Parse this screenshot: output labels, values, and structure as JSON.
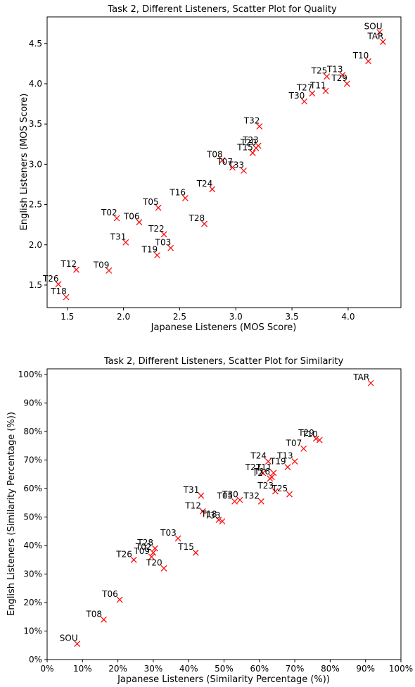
{
  "chart_data": [
    {
      "type": "scatter",
      "title": "Task 2, Different Listeners, Scatter Plot for Quality",
      "xlabel": "Japanese Listeners (MOS Score)",
      "ylabel": "English Listeners (MOS Score)",
      "xlim": [
        1.32,
        4.47
      ],
      "ylim": [
        1.22,
        4.83
      ],
      "xticks": [
        1.5,
        2.0,
        2.5,
        3.0,
        3.5,
        4.0
      ],
      "xtick_labels": [
        "1.5",
        "2.0",
        "2.5",
        "3.0",
        "3.5",
        "4.0"
      ],
      "yticks": [
        1.5,
        2.0,
        2.5,
        3.0,
        3.5,
        4.0,
        4.5
      ],
      "ytick_labels": [
        "1.5",
        "2.0",
        "2.5",
        "3.0",
        "3.5",
        "4.0",
        "4.5"
      ],
      "marker": "x",
      "marker_color": "#ff0000",
      "points": [
        {
          "label": "SOU",
          "x": 4.28,
          "y": 4.64
        },
        {
          "label": "TAR",
          "x": 4.31,
          "y": 4.52
        },
        {
          "label": "T10",
          "x": 4.18,
          "y": 4.28
        },
        {
          "label": "T13",
          "x": 3.95,
          "y": 4.11
        },
        {
          "label": "T25",
          "x": 3.81,
          "y": 4.09
        },
        {
          "label": "T29",
          "x": 3.99,
          "y": 4.0
        },
        {
          "label": "T27",
          "x": 3.68,
          "y": 3.88
        },
        {
          "label": "T11",
          "x": 3.8,
          "y": 3.91
        },
        {
          "label": "T30",
          "x": 3.61,
          "y": 3.78
        },
        {
          "label": "T32",
          "x": 3.21,
          "y": 3.47
        },
        {
          "label": "T20",
          "x": 3.18,
          "y": 3.2
        },
        {
          "label": "T23",
          "x": 3.2,
          "y": 3.23
        },
        {
          "label": "T15",
          "x": 3.15,
          "y": 3.14
        },
        {
          "label": "T08",
          "x": 2.88,
          "y": 3.05
        },
        {
          "label": "T07",
          "x": 2.97,
          "y": 2.96
        },
        {
          "label": "T33",
          "x": 3.07,
          "y": 2.92
        },
        {
          "label": "T24",
          "x": 2.79,
          "y": 2.69
        },
        {
          "label": "T16",
          "x": 2.55,
          "y": 2.58
        },
        {
          "label": "T05",
          "x": 2.31,
          "y": 2.46
        },
        {
          "label": "T02",
          "x": 1.94,
          "y": 2.33
        },
        {
          "label": "T06",
          "x": 2.14,
          "y": 2.28
        },
        {
          "label": "T28",
          "x": 2.72,
          "y": 2.26
        },
        {
          "label": "T22",
          "x": 2.36,
          "y": 2.13
        },
        {
          "label": "T31",
          "x": 2.02,
          "y": 2.03
        },
        {
          "label": "T03",
          "x": 2.42,
          "y": 1.96
        },
        {
          "label": "T19",
          "x": 2.3,
          "y": 1.87
        },
        {
          "label": "T12",
          "x": 1.58,
          "y": 1.69
        },
        {
          "label": "T09",
          "x": 1.87,
          "y": 1.68
        },
        {
          "label": "T26",
          "x": 1.42,
          "y": 1.51
        },
        {
          "label": "T18",
          "x": 1.49,
          "y": 1.35
        }
      ]
    },
    {
      "type": "scatter",
      "title": "Task 2, Different Listeners, Scatter Plot for Similarity",
      "xlabel": "Japanese Listeners (Similarity Percentage (%))",
      "ylabel": "English Listeners (Similarity Percentage (%))",
      "xlim": [
        0,
        100
      ],
      "ylim": [
        0,
        102
      ],
      "xticks": [
        0,
        10,
        20,
        30,
        40,
        50,
        60,
        70,
        80,
        90,
        100
      ],
      "xtick_labels": [
        "0%",
        "10%",
        "20%",
        "30%",
        "40%",
        "50%",
        "60%",
        "70%",
        "80%",
        "90%",
        "100%"
      ],
      "yticks": [
        0,
        10,
        20,
        30,
        40,
        50,
        60,
        70,
        80,
        90,
        100
      ],
      "ytick_labels": [
        "0%",
        "10%",
        "20%",
        "30%",
        "40%",
        "50%",
        "60%",
        "70%",
        "80%",
        "90%",
        "100%"
      ],
      "marker": "x",
      "marker_color": "#ff0000",
      "points": [
        {
          "label": "TAR",
          "x": 91.5,
          "y": 97.0
        },
        {
          "label": "T29",
          "x": 76.0,
          "y": 77.5
        },
        {
          "label": "T10",
          "x": 77.0,
          "y": 77.0
        },
        {
          "label": "T07",
          "x": 72.5,
          "y": 74.0
        },
        {
          "label": "T24",
          "x": 62.5,
          "y": 69.5
        },
        {
          "label": "T13",
          "x": 70.0,
          "y": 69.5
        },
        {
          "label": "T19",
          "x": 68.0,
          "y": 67.5
        },
        {
          "label": "T27",
          "x": 61.0,
          "y": 65.5
        },
        {
          "label": "T11",
          "x": 64.0,
          "y": 65.5
        },
        {
          "label": "T16",
          "x": 63.5,
          "y": 64.0
        },
        {
          "label": "T2",
          "x": 63.0,
          "y": 63.5
        },
        {
          "label": "T23",
          "x": 64.5,
          "y": 59.0
        },
        {
          "label": "T25",
          "x": 68.5,
          "y": 58.0
        },
        {
          "label": "T05",
          "x": 53.0,
          "y": 55.5
        },
        {
          "label": "T30",
          "x": 54.5,
          "y": 56.0
        },
        {
          "label": "T32",
          "x": 60.5,
          "y": 55.5
        },
        {
          "label": "T31",
          "x": 43.5,
          "y": 57.5
        },
        {
          "label": "T12",
          "x": 44.0,
          "y": 52.0
        },
        {
          "label": "T18",
          "x": 48.5,
          "y": 49.0
        },
        {
          "label": "T33",
          "x": 49.5,
          "y": 48.5
        },
        {
          "label": "T03",
          "x": 37.0,
          "y": 42.5
        },
        {
          "label": "T15",
          "x": 42.0,
          "y": 37.5
        },
        {
          "label": "T28",
          "x": 30.5,
          "y": 39.0
        },
        {
          "label": "T02",
          "x": 30.0,
          "y": 37.5
        },
        {
          "label": "T09",
          "x": 29.5,
          "y": 36.0
        },
        {
          "label": "T26",
          "x": 24.5,
          "y": 35.0
        },
        {
          "label": "T20",
          "x": 33.0,
          "y": 32.0
        },
        {
          "label": "T06",
          "x": 20.5,
          "y": 21.0
        },
        {
          "label": "T08",
          "x": 16.0,
          "y": 14.0
        },
        {
          "label": "SOU",
          "x": 8.5,
          "y": 5.5
        }
      ]
    }
  ]
}
